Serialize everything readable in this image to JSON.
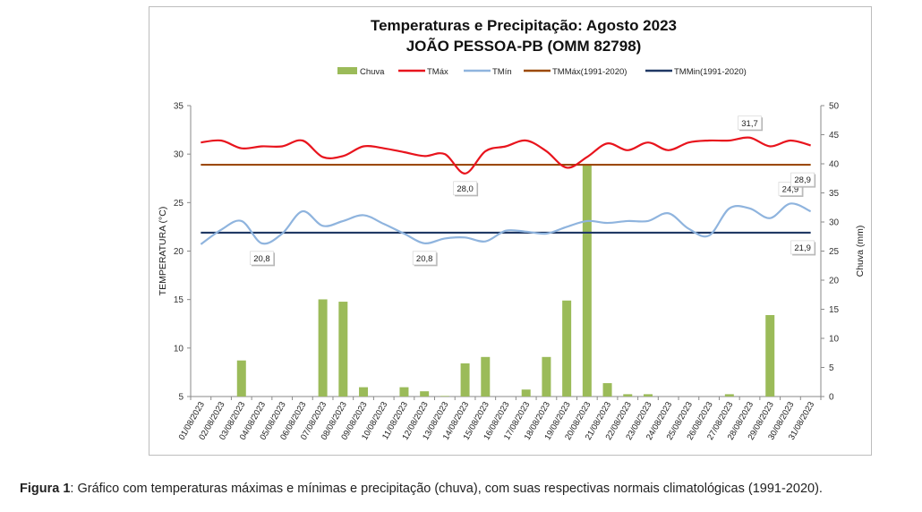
{
  "chart_data": {
    "type": "bar",
    "title": "Temperaturas e Precipitação: Agosto 2023",
    "subtitle": "JOÃO PESSOA-PB (OMM 82798)",
    "ylabel": "TEMPERATURA (°C)",
    "y2label": "Chuva (mm)",
    "ylim": [
      5,
      35
    ],
    "yticks": [
      5,
      10,
      15,
      20,
      25,
      30,
      35
    ],
    "y2lim": [
      0,
      50
    ],
    "y2ticks": [
      0,
      5,
      10,
      15,
      20,
      25,
      30,
      35,
      40,
      45,
      50
    ],
    "grid": false,
    "legend_position": "top",
    "categories": [
      "01/08/2023",
      "02/08/2023",
      "03/08/2023",
      "04/08/2023",
      "05/08/2023",
      "06/08/2023",
      "07/08/2023",
      "08/08/2023",
      "09/08/2023",
      "10/08/2023",
      "11/08/2023",
      "12/08/2023",
      "13/08/2023",
      "14/08/2023",
      "15/08/2023",
      "16/08/2023",
      "17/08/2023",
      "18/08/2023",
      "19/08/2023",
      "20/08/2023",
      "21/08/2023",
      "22/08/2023",
      "23/08/2023",
      "24/08/2023",
      "25/08/2023",
      "26/08/2023",
      "27/08/2023",
      "28/08/2023",
      "29/08/2023",
      "30/08/2023",
      "31/08/2023"
    ],
    "series": [
      {
        "name": "Chuva",
        "type": "bar",
        "axis": "right",
        "color": "#9bbb59",
        "values": [
          0,
          0,
          6.2,
          0,
          0,
          0,
          16.7,
          16.3,
          1.6,
          0,
          1.6,
          0.9,
          0.1,
          5.7,
          6.8,
          0,
          1.2,
          6.8,
          16.5,
          40,
          2.3,
          0.4,
          0.4,
          0,
          0,
          0,
          0.4,
          0,
          14.0,
          0,
          0
        ]
      },
      {
        "name": "TMáx",
        "type": "line",
        "axis": "left",
        "color": "#e8141d",
        "values": [
          31.2,
          31.4,
          30.6,
          30.8,
          30.8,
          31.4,
          29.7,
          29.8,
          30.8,
          30.6,
          30.2,
          29.8,
          30.0,
          28.0,
          30.3,
          30.8,
          31.4,
          30.3,
          28.6,
          29.7,
          31.1,
          30.4,
          31.2,
          30.4,
          31.2,
          31.4,
          31.4,
          31.7,
          30.8,
          31.4,
          30.9
        ]
      },
      {
        "name": "TMín",
        "type": "line",
        "axis": "left",
        "color": "#8fb4de",
        "values": [
          20.7,
          22.2,
          23.1,
          20.8,
          21.8,
          24.1,
          22.6,
          23.1,
          23.7,
          22.8,
          21.8,
          20.8,
          21.3,
          21.4,
          21.0,
          22.1,
          22.0,
          21.8,
          22.5,
          23.1,
          22.9,
          23.1,
          23.1,
          23.9,
          22.3,
          21.6,
          24.4,
          24.4,
          23.4,
          24.9,
          24.1
        ]
      },
      {
        "name": "TMMáx(1991-2020)",
        "type": "line",
        "axis": "left",
        "color": "#9c4a06",
        "values": [
          28.9,
          28.9,
          28.9,
          28.9,
          28.9,
          28.9,
          28.9,
          28.9,
          28.9,
          28.9,
          28.9,
          28.9,
          28.9,
          28.9,
          28.9,
          28.9,
          28.9,
          28.9,
          28.9,
          28.9,
          28.9,
          28.9,
          28.9,
          28.9,
          28.9,
          28.9,
          28.9,
          28.9,
          28.9,
          28.9,
          28.9
        ]
      },
      {
        "name": "TMMin(1991-2020)",
        "type": "line",
        "axis": "left",
        "color": "#1f3864",
        "values": [
          21.9,
          21.9,
          21.9,
          21.9,
          21.9,
          21.9,
          21.9,
          21.9,
          21.9,
          21.9,
          21.9,
          21.9,
          21.9,
          21.9,
          21.9,
          21.9,
          21.9,
          21.9,
          21.9,
          21.9,
          21.9,
          21.9,
          21.9,
          21.9,
          21.9,
          21.9,
          21.9,
          21.9,
          21.9,
          21.9,
          21.9
        ]
      }
    ],
    "annotations": [
      {
        "text": "20,8",
        "category_index": 3,
        "value": 20.8,
        "placement": "below"
      },
      {
        "text": "20,8",
        "category_index": 11,
        "value": 20.8,
        "placement": "below"
      },
      {
        "text": "28,0",
        "category_index": 13,
        "value": 28.0,
        "placement": "below"
      },
      {
        "text": "31,7",
        "category_index": 27,
        "value": 31.7,
        "placement": "above"
      },
      {
        "text": "24,9",
        "category_index": 29,
        "value": 24.9,
        "placement": "above"
      },
      {
        "text": "28,9",
        "category_index": 30,
        "value": 28.9,
        "placement": "below"
      },
      {
        "text": "21,9",
        "category_index": 30,
        "value": 21.9,
        "placement": "below"
      }
    ]
  },
  "caption": {
    "label": "Figura 1",
    "text": ": Gráfico com temperaturas máximas e mínimas e precipitação (chuva), com suas respectivas normais climatológicas (1991-2020)."
  }
}
